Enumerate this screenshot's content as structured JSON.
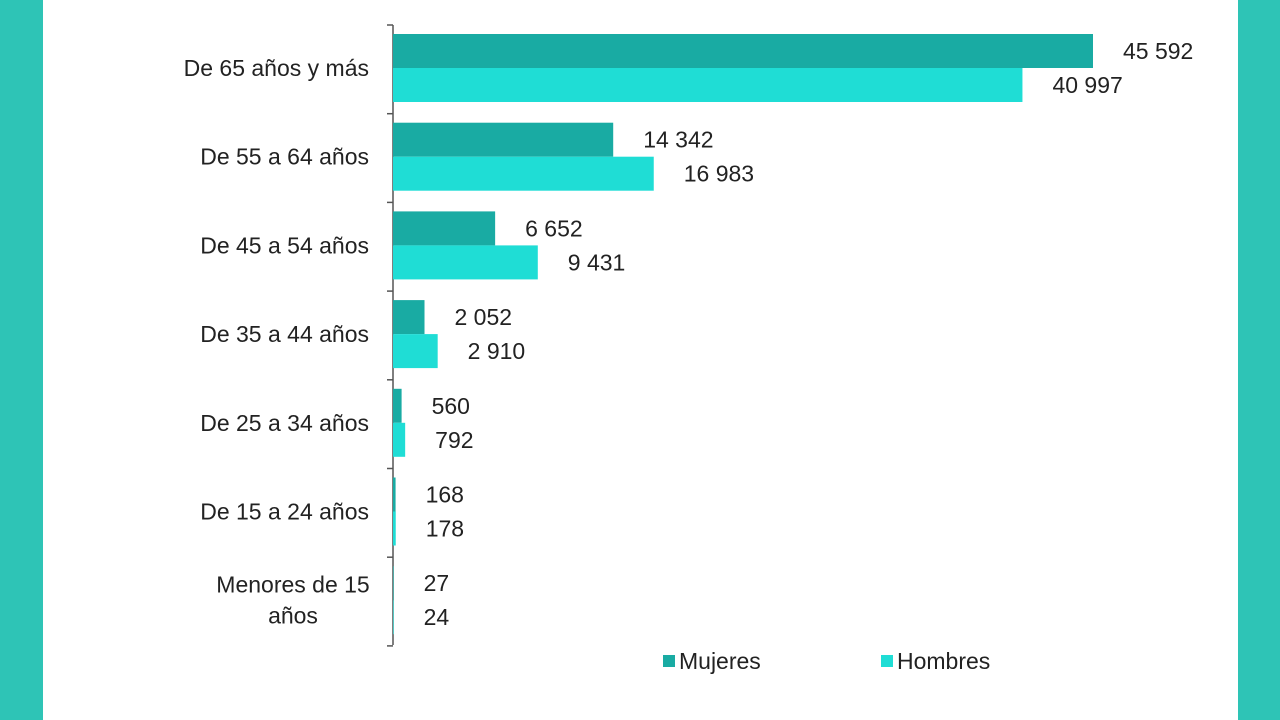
{
  "chart_data": {
    "type": "bar",
    "orientation": "horizontal",
    "categories": [
      [
        "De 65 años y más"
      ],
      [
        "De 55 a 64 años"
      ],
      [
        "De 45 a 54 años"
      ],
      [
        "De 35 a 44 años"
      ],
      [
        "De 25 a 34 años"
      ],
      [
        "De 15 a 24 años"
      ],
      [
        "Menores de 15",
        "años"
      ]
    ],
    "series": [
      {
        "name": "Mujeres",
        "color": "#19aba3",
        "values": [
          45592,
          14342,
          6652,
          2052,
          560,
          168,
          27
        ],
        "labels": [
          "45 592",
          "14 342",
          "6 652",
          "2 052",
          "560",
          "168",
          "27"
        ]
      },
      {
        "name": "Hombres",
        "color": "#1fddd5",
        "values": [
          40997,
          16983,
          9431,
          2910,
          792,
          178,
          24
        ],
        "labels": [
          "40 997",
          "16 983",
          "9 431",
          "2 910",
          "792",
          "178",
          "24"
        ]
      }
    ],
    "title": "",
    "xlabel": "",
    "ylabel": "",
    "xlim": [
      0,
      45592
    ],
    "grid": false,
    "legend_position": "bottom"
  },
  "colors": {
    "background_frame": "#2ec4b6",
    "panel": "#ffffff"
  }
}
